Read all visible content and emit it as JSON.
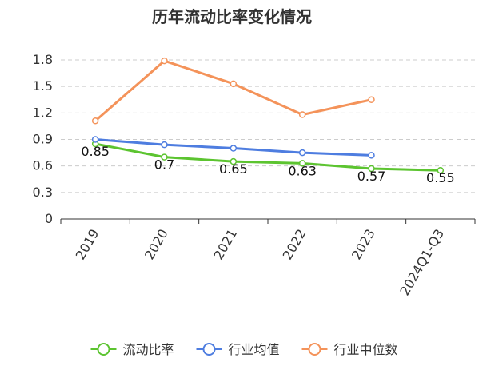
{
  "chart_data": {
    "type": "line",
    "title": "历年流动比率变化情况",
    "categories": [
      "2019",
      "2020",
      "2021",
      "2022",
      "2023",
      "2024Q1-Q3"
    ],
    "ylim": [
      0,
      1.8
    ],
    "yticks": [
      0,
      0.3,
      0.6,
      0.9,
      1.2,
      1.5,
      1.8
    ],
    "ytick_labels": [
      "0",
      "0.3",
      "0.6",
      "0.9",
      "1.2",
      "1.5",
      "1.8"
    ],
    "grid": true,
    "legend_position": "bottom",
    "series": [
      {
        "name": "流动比率",
        "color": "#5cc430",
        "values": [
          0.85,
          0.7,
          0.65,
          0.63,
          0.57,
          0.55
        ],
        "labels": [
          "0.85",
          "0.7",
          "0.65",
          "0.63",
          "0.57",
          "0.55"
        ]
      },
      {
        "name": "行业均值",
        "color": "#4e7de0",
        "values": [
          0.9,
          0.84,
          0.8,
          0.75,
          0.72,
          null
        ]
      },
      {
        "name": "行业中位数",
        "color": "#f4935a",
        "values": [
          1.11,
          1.79,
          1.53,
          1.18,
          1.35,
          null
        ]
      }
    ]
  }
}
